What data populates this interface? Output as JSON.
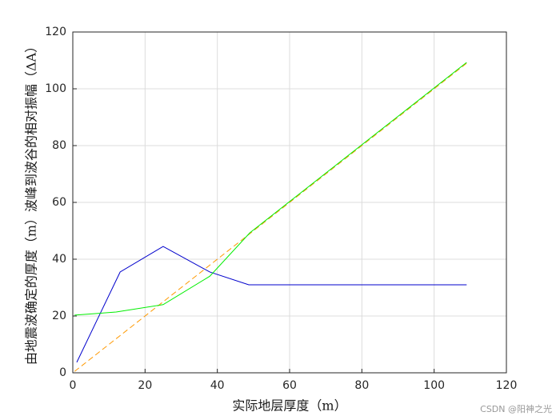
{
  "chart_data": {
    "type": "line",
    "xlabel": "实际地层厚度（m）",
    "ylabel": "由地震波确定的厚度（m）波峰到波谷的相对振幅（ΔA）",
    "xlim": [
      0,
      120
    ],
    "xticks": [
      0,
      20,
      40,
      60,
      80,
      100,
      120
    ],
    "ylim": [
      0,
      120
    ],
    "yticks": [
      0,
      20,
      40,
      60,
      80,
      100,
      120
    ],
    "grid": true,
    "series": [
      {
        "color": "#0000cc",
        "line_style": "solid",
        "x": [
          1.1,
          13.1,
          25,
          37.9,
          48.7,
          109
        ],
        "values": [
          3.7,
          35.5,
          44.5,
          35.5,
          31,
          31
        ]
      },
      {
        "color": "#ff9900",
        "line_style": "dashed",
        "x": [
          0.5,
          109
        ],
        "values": [
          0.5,
          109
        ]
      },
      {
        "color": "#00ee00",
        "line_style": "solid",
        "x": [
          0.5,
          12,
          25,
          37.9,
          49,
          109
        ],
        "values": [
          20.3,
          21.4,
          24,
          34,
          49.3,
          109.3
        ]
      }
    ],
    "watermark": "CSDN @阳神之光"
  }
}
